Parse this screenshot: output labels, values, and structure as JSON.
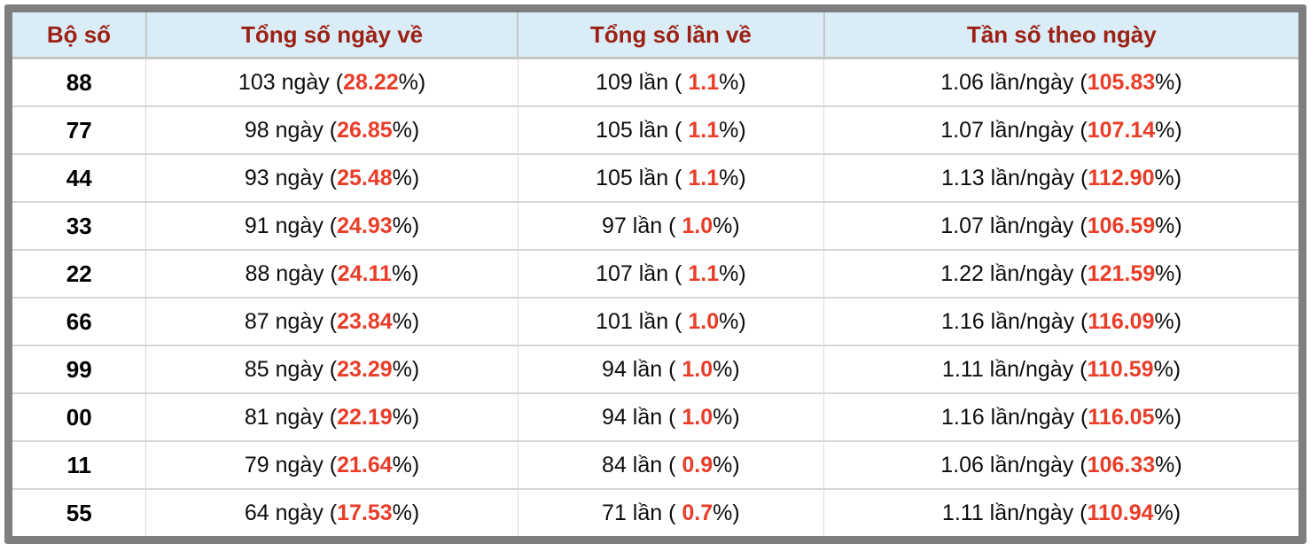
{
  "colors": {
    "frame": "#7e7e7e",
    "header-bg": "#daedf6",
    "header-text": "#9c2014",
    "accent": "#e93d28",
    "body-text": "#0d0d0d",
    "row-sep": "#d6d6d6",
    "col-sep": "#d9d9d9",
    "header-sep": "#c6c6c6"
  },
  "table": {
    "headers": [
      {
        "label": "Bộ số"
      },
      {
        "label": "Tổng số ngày về"
      },
      {
        "label": "Tổng số lần về"
      },
      {
        "label": "Tần số theo ngày"
      }
    ],
    "rows": [
      {
        "pair": "88",
        "days": {
          "pre": "103 ngày (",
          "value": "28.22",
          "post": "%)"
        },
        "times": {
          "pre": "109 lần ( ",
          "value": "1.1",
          "post": "%)"
        },
        "freq": {
          "pre": "1.06 lần/ngày (",
          "value": "105.83",
          "post": "%)"
        }
      },
      {
        "pair": "77",
        "days": {
          "pre": "98 ngày (",
          "value": "26.85",
          "post": "%)"
        },
        "times": {
          "pre": "105 lần ( ",
          "value": "1.1",
          "post": "%)"
        },
        "freq": {
          "pre": "1.07 lần/ngày (",
          "value": "107.14",
          "post": "%)"
        }
      },
      {
        "pair": "44",
        "days": {
          "pre": "93 ngày (",
          "value": "25.48",
          "post": "%)"
        },
        "times": {
          "pre": "105 lần ( ",
          "value": "1.1",
          "post": "%)"
        },
        "freq": {
          "pre": "1.13 lần/ngày (",
          "value": "112.90",
          "post": "%)"
        }
      },
      {
        "pair": "33",
        "days": {
          "pre": "91 ngày (",
          "value": "24.93",
          "post": "%)"
        },
        "times": {
          "pre": "97 lần ( ",
          "value": "1.0",
          "post": "%)"
        },
        "freq": {
          "pre": "1.07 lần/ngày (",
          "value": "106.59",
          "post": "%)"
        }
      },
      {
        "pair": "22",
        "days": {
          "pre": "88 ngày (",
          "value": "24.11",
          "post": "%)"
        },
        "times": {
          "pre": "107 lần ( ",
          "value": "1.1",
          "post": "%)"
        },
        "freq": {
          "pre": "1.22 lần/ngày (",
          "value": "121.59",
          "post": "%)"
        }
      },
      {
        "pair": "66",
        "days": {
          "pre": "87 ngày (",
          "value": "23.84",
          "post": "%)"
        },
        "times": {
          "pre": "101 lần ( ",
          "value": "1.0",
          "post": "%)"
        },
        "freq": {
          "pre": "1.16 lần/ngày (",
          "value": "116.09",
          "post": "%)"
        }
      },
      {
        "pair": "99",
        "days": {
          "pre": "85 ngày (",
          "value": "23.29",
          "post": "%)"
        },
        "times": {
          "pre": "94 lần ( ",
          "value": "1.0",
          "post": "%)"
        },
        "freq": {
          "pre": "1.11 lần/ngày (",
          "value": "110.59",
          "post": "%)"
        }
      },
      {
        "pair": "00",
        "days": {
          "pre": "81 ngày (",
          "value": "22.19",
          "post": "%)"
        },
        "times": {
          "pre": "94 lần ( ",
          "value": "1.0",
          "post": "%)"
        },
        "freq": {
          "pre": "1.16 lần/ngày (",
          "value": "116.05",
          "post": "%)"
        }
      },
      {
        "pair": "11",
        "days": {
          "pre": "79 ngày (",
          "value": "21.64",
          "post": "%)"
        },
        "times": {
          "pre": "84 lần ( ",
          "value": "0.9",
          "post": "%)"
        },
        "freq": {
          "pre": "1.06 lần/ngày (",
          "value": "106.33",
          "post": "%)"
        }
      },
      {
        "pair": "55",
        "days": {
          "pre": "64 ngày (",
          "value": "17.53",
          "post": "%)"
        },
        "times": {
          "pre": "71 lần ( ",
          "value": "0.7",
          "post": "%)"
        },
        "freq": {
          "pre": "1.11 lần/ngày (",
          "value": "110.94",
          "post": "%)"
        }
      }
    ]
  }
}
